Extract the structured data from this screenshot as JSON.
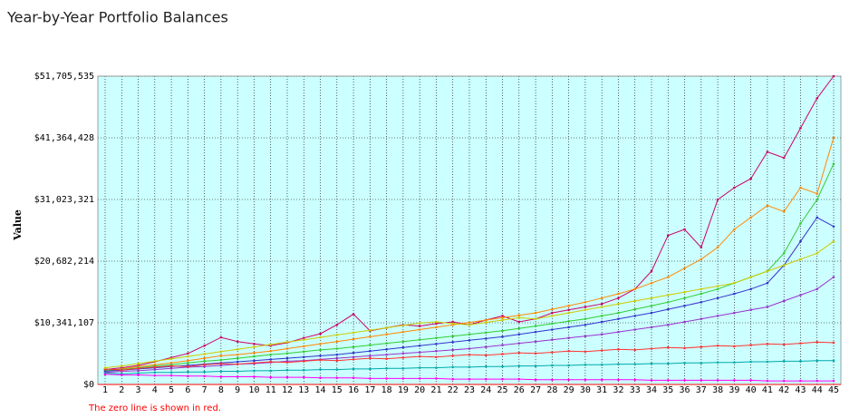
{
  "chart_data": {
    "type": "line",
    "title": "Year-by-Year Portfolio Balances",
    "y_label": "Value",
    "footnote": "The zero line is shown in red.",
    "background": "#ccffff",
    "grid": true,
    "zero_line_color": "#ff0000",
    "categories": [
      1,
      2,
      3,
      4,
      5,
      6,
      7,
      8,
      9,
      10,
      11,
      12,
      13,
      14,
      15,
      16,
      17,
      18,
      19,
      20,
      21,
      22,
      23,
      24,
      25,
      26,
      27,
      28,
      29,
      30,
      31,
      32,
      33,
      34,
      35,
      36,
      37,
      38,
      39,
      40,
      41,
      42,
      43,
      44,
      45
    ],
    "ylim": [
      0,
      51705535
    ],
    "yticks": [
      {
        "value": 0,
        "label": "$0"
      },
      {
        "value": 10341107,
        "label": "$10,341,107"
      },
      {
        "value": 20682214,
        "label": "$20,682,214"
      },
      {
        "value": 31023321,
        "label": "$31,023,321"
      },
      {
        "value": 41364428,
        "label": "$41,364,428"
      },
      {
        "value": 51705535,
        "label": "$51,705,535"
      }
    ],
    "series": [
      {
        "color": "#cc0066",
        "values": [
          2500000,
          2800000,
          3200000,
          3800000,
          4500000,
          5200000,
          6500000,
          7900000,
          7200000,
          6800000,
          6500000,
          7000000,
          7800000,
          8500000,
          10000000,
          11800000,
          9000000,
          9500000,
          10000000,
          9800000,
          10200000,
          10500000,
          10000000,
          10800000,
          11500000,
          10500000,
          11000000,
          12000000,
          12500000,
          13000000,
          13500000,
          14500000,
          16000000,
          19000000,
          25000000,
          26000000,
          23000000,
          31000000,
          33000000,
          34500000,
          39000000,
          38000000,
          43000000,
          48000000,
          51705535
        ]
      },
      {
        "color": "#ff8800",
        "values": [
          2300000,
          2600000,
          3000000,
          3300000,
          3600000,
          4000000,
          4400000,
          4800000,
          5000000,
          5300000,
          5600000,
          6000000,
          6400000,
          6800000,
          7200000,
          7600000,
          8000000,
          8400000,
          8800000,
          9200000,
          9600000,
          10000000,
          10400000,
          10800000,
          11200000,
          11600000,
          12000000,
          12600000,
          13200000,
          13800000,
          14500000,
          15200000,
          16000000,
          17000000,
          18000000,
          19500000,
          21000000,
          23000000,
          26000000,
          28000000,
          30000000,
          29000000,
          33000000,
          32000000,
          41400000
        ]
      },
      {
        "color": "#33cc33",
        "values": [
          2400000,
          2500000,
          2800000,
          3100000,
          3300000,
          3600000,
          3900000,
          4100000,
          4400000,
          4700000,
          5000000,
          5200000,
          5500000,
          5800000,
          6000000,
          6300000,
          6600000,
          6900000,
          7200000,
          7500000,
          7800000,
          8100000,
          8400000,
          8700000,
          9000000,
          9400000,
          9800000,
          10200000,
          10600000,
          11000000,
          11500000,
          12000000,
          12600000,
          13200000,
          13800000,
          14500000,
          15200000,
          16000000,
          17000000,
          18000000,
          19000000,
          22000000,
          27000000,
          31000000,
          37000000
        ]
      },
      {
        "color": "#3333cc",
        "values": [
          2200000,
          2400000,
          2600000,
          2800000,
          3000000,
          3200000,
          3400000,
          3600000,
          3800000,
          4000000,
          4200000,
          4400000,
          4600000,
          4800000,
          5000000,
          5300000,
          5600000,
          5900000,
          6200000,
          6500000,
          6800000,
          7100000,
          7400000,
          7700000,
          8000000,
          8400000,
          8800000,
          9200000,
          9600000,
          10000000,
          10500000,
          11000000,
          11500000,
          12000000,
          12600000,
          13200000,
          13800000,
          14500000,
          15200000,
          16000000,
          17000000,
          20000000,
          24000000,
          28000000,
          26500000
        ]
      },
      {
        "color": "#9933cc",
        "values": [
          2000000,
          2200000,
          2300000,
          2500000,
          2700000,
          2900000,
          3000000,
          3200000,
          3400000,
          3500000,
          3700000,
          3900000,
          4000000,
          4200000,
          4400000,
          4600000,
          4800000,
          5000000,
          5200000,
          5400000,
          5600000,
          5800000,
          6000000,
          6300000,
          6600000,
          6900000,
          7200000,
          7500000,
          7800000,
          8100000,
          8400000,
          8800000,
          9200000,
          9600000,
          10000000,
          10500000,
          11000000,
          11500000,
          12000000,
          12500000,
          13000000,
          14000000,
          15000000,
          16000000,
          18000000
        ]
      },
      {
        "color": "#ff3333",
        "values": [
          2600000,
          2400000,
          2700000,
          2900000,
          3100000,
          3000000,
          3300000,
          3500000,
          3400000,
          3600000,
          3800000,
          3700000,
          3900000,
          4100000,
          4000000,
          4200000,
          4400000,
          4300000,
          4500000,
          4700000,
          4600000,
          4800000,
          5000000,
          4900000,
          5100000,
          5300000,
          5200000,
          5400000,
          5600000,
          5500000,
          5700000,
          5900000,
          5800000,
          6000000,
          6200000,
          6100000,
          6300000,
          6500000,
          6400000,
          6600000,
          6800000,
          6700000,
          6900000,
          7100000,
          7000000
        ]
      },
      {
        "color": "#00aaaa",
        "values": [
          1900000,
          1800000,
          1900000,
          2000000,
          2000000,
          2100000,
          2100000,
          2200000,
          2200000,
          2300000,
          2300000,
          2400000,
          2400000,
          2500000,
          2500000,
          2600000,
          2600000,
          2700000,
          2700000,
          2800000,
          2800000,
          2900000,
          2900000,
          3000000,
          3000000,
          3100000,
          3100000,
          3200000,
          3200000,
          3300000,
          3300000,
          3400000,
          3400000,
          3500000,
          3500000,
          3600000,
          3600000,
          3700000,
          3700000,
          3800000,
          3800000,
          3900000,
          3900000,
          4000000,
          4000000
        ]
      },
      {
        "color": "#cccc00",
        "values": [
          2800000,
          3100000,
          3500000,
          3900000,
          4300000,
          4700000,
          5100000,
          5500000,
          5900000,
          6300000,
          6700000,
          7100000,
          7500000,
          7900000,
          8300000,
          8700000,
          9100000,
          9500000,
          9900000,
          10300000,
          10500000,
          10200000,
          10000000,
          10400000,
          10800000,
          11200000,
          11000000,
          11500000,
          12000000,
          12500000,
          13000000,
          13500000,
          14000000,
          14500000,
          15000000,
          15500000,
          16000000,
          16500000,
          17000000,
          18000000,
          19000000,
          20000000,
          21000000,
          22000000,
          24000000
        ]
      },
      {
        "color": "#ff00ff",
        "values": [
          1700000,
          1600000,
          1600000,
          1500000,
          1500000,
          1400000,
          1400000,
          1300000,
          1300000,
          1300000,
          1200000,
          1200000,
          1200000,
          1100000,
          1100000,
          1100000,
          1000000,
          1000000,
          1000000,
          1000000,
          1000000,
          900000,
          900000,
          900000,
          900000,
          900000,
          800000,
          800000,
          800000,
          800000,
          800000,
          800000,
          800000,
          700000,
          700000,
          700000,
          700000,
          700000,
          700000,
          700000,
          600000,
          600000,
          600000,
          600000,
          600000
        ]
      }
    ]
  }
}
